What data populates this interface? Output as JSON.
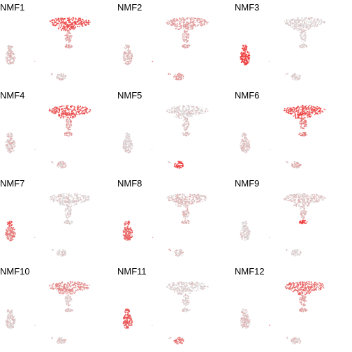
{
  "chart_data": {
    "type": "scatter",
    "description_free": true,
    "color_low": "#d9d9d9",
    "color_high": "#ee2c2c",
    "panels": [
      {
        "title": "NMF1",
        "levels": {
          "top": 0.85,
          "stem": 0.35,
          "left": 0.15,
          "right": 0.15,
          "mid": 0.15,
          "dot": 0.1
        }
      },
      {
        "title": "NMF2",
        "levels": {
          "top": 0.35,
          "stem": 0.3,
          "left": 0.2,
          "right": 0.35,
          "mid": 0.4,
          "dot": 0.6
        }
      },
      {
        "title": "NMF3",
        "levels": {
          "top": 0.05,
          "stem": 0.05,
          "left": 0.95,
          "right": 0.05,
          "mid": 0.05,
          "dot": 0.05
        }
      },
      {
        "title": "NMF4",
        "levels": {
          "top": 0.8,
          "stem": 0.35,
          "left": 0.15,
          "right": 0.15,
          "mid": 0.1,
          "dot": 0.1
        }
      },
      {
        "title": "NMF5",
        "levels": {
          "top": 0.05,
          "stem": 0.15,
          "left": 0.05,
          "right": 0.95,
          "mid": 0.05,
          "dot": 0.05
        }
      },
      {
        "title": "NMF6",
        "levels": {
          "top": 0.85,
          "stem": 0.55,
          "left": 0.15,
          "right": 0.25,
          "mid": 0.2,
          "dot": 0.1
        }
      },
      {
        "title": "NMF7",
        "levels": {
          "top": 0.05,
          "stem": 0.05,
          "left": 0.55,
          "left_top": 0.95,
          "right": 0.05,
          "mid": 0.05,
          "dot": 0.05
        }
      },
      {
        "title": "NMF8",
        "levels": {
          "top": 0.15,
          "stem": 0.2,
          "left": 0.7,
          "right": 0.1,
          "mid": 0.4,
          "dot": 0.3
        }
      },
      {
        "title": "NMF9",
        "levels": {
          "top": 0.15,
          "stem": 0.2,
          "stem_bottom": 0.95,
          "left": 0.05,
          "right": 0.05,
          "mid": 0.05,
          "dot": 0.05
        }
      },
      {
        "title": "NMF10",
        "levels": {
          "top": 0.45,
          "stem": 0.15,
          "left": 0.1,
          "right": 0.15,
          "mid": 0.1,
          "dot": 0.1
        }
      },
      {
        "title": "NMF11",
        "levels": {
          "top": 0.05,
          "stem": 0.1,
          "left": 0.75,
          "right": 0.55,
          "mid": 0.1,
          "dot": 0.1
        }
      },
      {
        "title": "NMF12",
        "levels": {
          "top": 0.65,
          "stem": 0.35,
          "left": 0.15,
          "right": 0.15,
          "mid": 0.1,
          "dot": 0.9
        }
      }
    ]
  }
}
